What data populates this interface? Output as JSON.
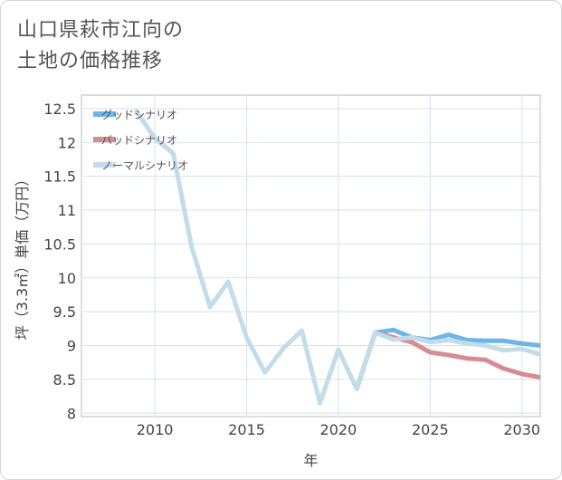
{
  "title": {
    "line1": "山口県萩市江向の",
    "line2": "土地の価格推移"
  },
  "chart_data": {
    "type": "line",
    "xlabel": "年",
    "ylabel": "坪（3.3㎡）単価（万円）",
    "xlim": [
      2006,
      2031
    ],
    "ylim": [
      7.95,
      12.7
    ],
    "xticks": [
      2010,
      2015,
      2020,
      2025,
      2030
    ],
    "yticks": [
      8,
      8.5,
      9,
      9.5,
      10,
      10.5,
      11,
      11.5,
      12,
      12.5
    ],
    "ytick_labels": [
      "8",
      "8.5",
      "9",
      "9.5",
      "10",
      "10.5",
      "11",
      "11.5",
      "12",
      "12.5"
    ],
    "xtick_labels": [
      "2010",
      "2015",
      "2020",
      "2025",
      "2030"
    ],
    "legend_position": "top-left",
    "series": [
      {
        "name": "グッドシナリオ",
        "color": "#6cb4ea",
        "x": [
          2021,
          2022,
          2023,
          2024,
          2025,
          2026,
          2027,
          2028,
          2029,
          2030,
          2031
        ],
        "values": [
          8.36,
          9.19,
          9.23,
          9.12,
          9.08,
          9.16,
          9.08,
          9.07,
          9.07,
          9.03,
          9.0
        ]
      },
      {
        "name": "バッドシナリオ",
        "color": "#d98b93",
        "x": [
          2021,
          2022,
          2023,
          2024,
          2025,
          2026,
          2027,
          2028,
          2029,
          2030,
          2031
        ],
        "values": [
          8.36,
          9.19,
          9.12,
          9.05,
          8.9,
          8.86,
          8.81,
          8.79,
          8.66,
          8.58,
          8.53
        ]
      },
      {
        "name": "ノーマルシナリオ",
        "color": "#c2dcea",
        "x": [
          2009,
          2010,
          2011,
          2012,
          2013,
          2014,
          2015,
          2016,
          2017,
          2018,
          2019,
          2020,
          2021,
          2022,
          2023,
          2024,
          2025,
          2026,
          2027,
          2028,
          2029,
          2030,
          2031
        ],
        "values": [
          12.46,
          12.06,
          11.84,
          10.46,
          9.57,
          9.94,
          9.12,
          8.6,
          8.96,
          9.22,
          8.15,
          8.94,
          8.36,
          9.19,
          9.09,
          9.12,
          9.05,
          9.08,
          9.03,
          9.0,
          8.93,
          8.95,
          8.87
        ]
      }
    ]
  }
}
